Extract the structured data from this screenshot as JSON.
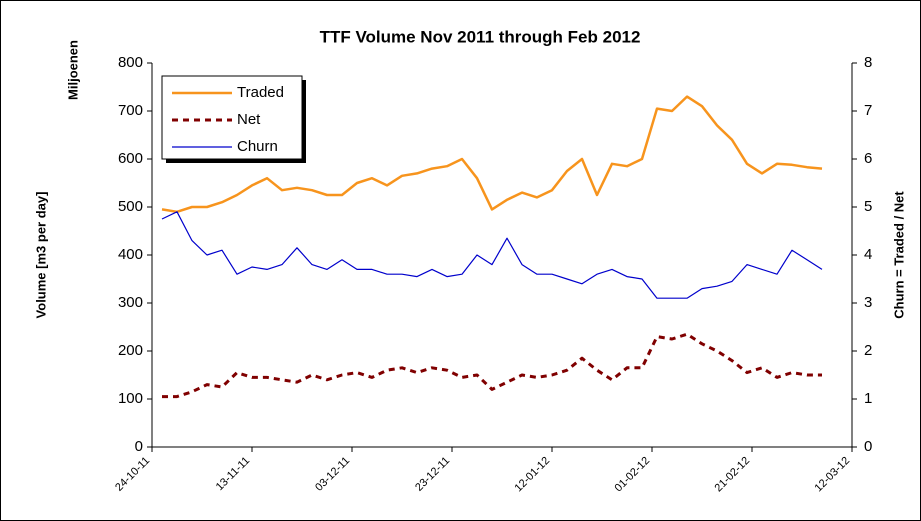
{
  "chart_data": {
    "type": "line",
    "title": "TTF Volume  Nov 2011 through Feb 2012",
    "y_label": "Volume [m3 per day]",
    "y_unit_label": "Miljoenen",
    "y2_label": "Churn = Traded / Net",
    "x": [
      "26-10-11",
      "29-10-11",
      "01-11-11",
      "04-11-11",
      "07-11-11",
      "10-11-11",
      "13-11-11",
      "16-11-11",
      "19-11-11",
      "22-11-11",
      "25-11-11",
      "28-11-11",
      "01-12-11",
      "04-12-11",
      "07-12-11",
      "10-12-11",
      "13-12-11",
      "16-12-11",
      "19-12-11",
      "22-12-11",
      "25-12-11",
      "28-12-11",
      "31-12-11",
      "03-01-12",
      "06-01-12",
      "09-01-12",
      "12-01-12",
      "15-01-12",
      "18-01-12",
      "21-01-12",
      "24-01-12",
      "27-01-12",
      "30-01-12",
      "02-02-12",
      "05-02-12",
      "08-02-12",
      "11-02-12",
      "14-02-12",
      "17-02-12",
      "20-02-12",
      "23-02-12",
      "26-02-12",
      "29-02-12",
      "03-03-12",
      "06-03-12"
    ],
    "series": [
      {
        "name": "Traded",
        "color": "#f7941d",
        "axis": "y",
        "values": [
          495,
          490,
          500,
          500,
          510,
          525,
          545,
          560,
          535,
          540,
          535,
          525,
          525,
          550,
          560,
          545,
          565,
          570,
          580,
          585,
          600,
          560,
          495,
          515,
          530,
          520,
          535,
          575,
          600,
          525,
          590,
          585,
          600,
          705,
          700,
          730,
          710,
          670,
          640,
          590,
          570,
          590,
          588,
          583,
          580
        ]
      },
      {
        "name": "Net",
        "color": "#800000",
        "axis": "y",
        "dashed": true,
        "values": [
          105,
          105,
          115,
          130,
          125,
          155,
          145,
          145,
          140,
          135,
          150,
          140,
          150,
          155,
          145,
          160,
          165,
          155,
          165,
          160,
          145,
          150,
          120,
          135,
          150,
          145,
          150,
          160,
          185,
          160,
          140,
          165,
          165,
          230,
          225,
          235,
          215,
          200,
          180,
          155,
          165,
          145,
          155,
          150,
          150
        ]
      },
      {
        "name": "Churn",
        "color": "#0000cc",
        "axis": "y2",
        "values": [
          4.75,
          4.9,
          4.3,
          4.0,
          4.1,
          3.6,
          3.75,
          3.7,
          3.8,
          4.15,
          3.8,
          3.7,
          3.9,
          3.7,
          3.7,
          3.6,
          3.6,
          3.55,
          3.7,
          3.55,
          3.6,
          4.0,
          3.8,
          4.35,
          3.8,
          3.6,
          3.6,
          3.5,
          3.4,
          3.6,
          3.7,
          3.55,
          3.5,
          3.1,
          3.1,
          3.1,
          3.3,
          3.35,
          3.45,
          3.8,
          3.7,
          3.6,
          4.1,
          3.9,
          3.7
        ]
      }
    ],
    "xlim": [
      "24-10-11",
      "12-03-12"
    ],
    "xticks": [
      "24-10-11",
      "13-11-11",
      "03-12-11",
      "23-12-11",
      "12-01-12",
      "01-02-12",
      "21-02-12",
      "12-03-12"
    ],
    "ylim": [
      0,
      800
    ],
    "yticks": [
      0,
      100,
      200,
      300,
      400,
      500,
      600,
      700,
      800
    ],
    "y2lim": [
      0,
      8
    ],
    "y2ticks": [
      0,
      1,
      2,
      3,
      4,
      5,
      6,
      7,
      8
    ],
    "grid": false,
    "legend": "upper left"
  }
}
